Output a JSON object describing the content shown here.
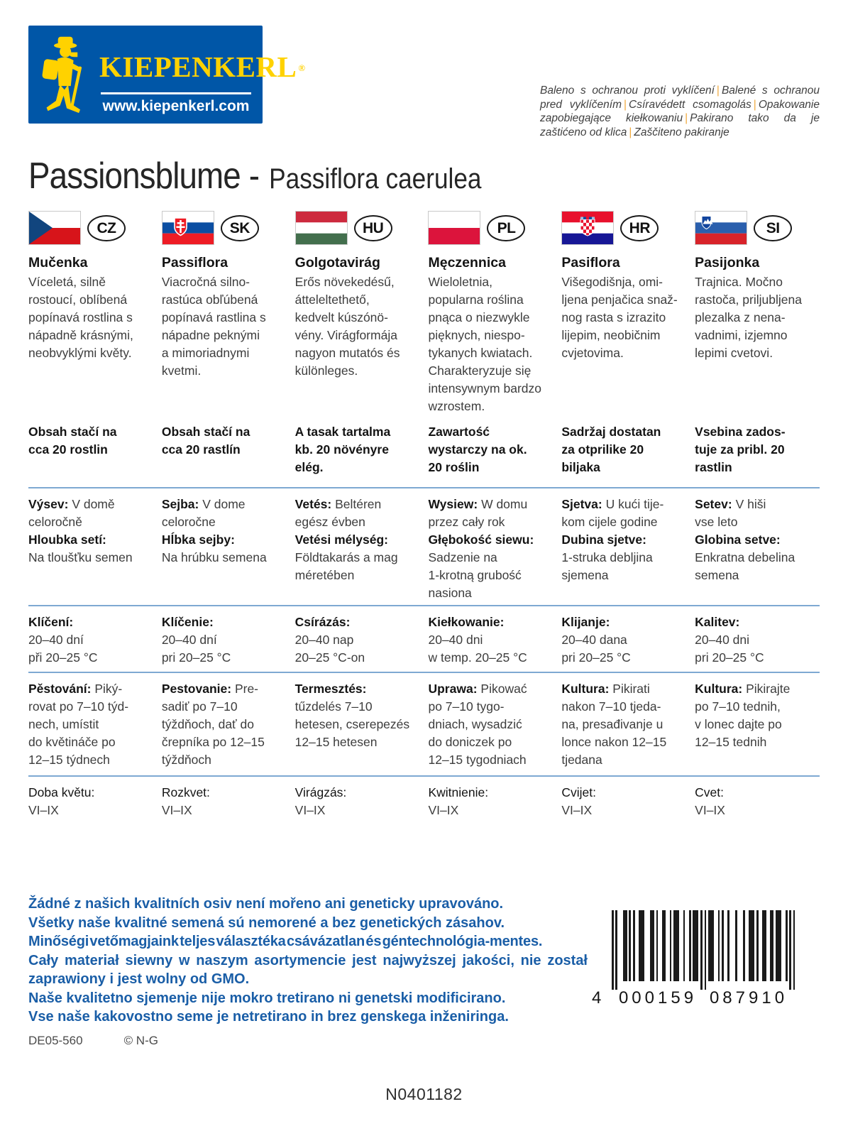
{
  "logo": {
    "brand": "KIEPENKERL",
    "reg": "®",
    "url": "www.kiepenkerl.com",
    "bg_color": "#0056a7",
    "accent_color": "#ffd200"
  },
  "header": {
    "note_separator": "|",
    "note_segments": [
      "Baleno s ochranou proti vyklíčení",
      "Balené s ochranou pred vyklíčením",
      "Csíravédett csomagolás",
      "Opakowanie zapobiegające kiełkowaniu",
      "Pakirano tako da je zaštićeno od klica",
      "Zaščiteno pakiranje"
    ],
    "title": "Passionsblume -",
    "subtitle": "Passiflora caerulea"
  },
  "columns": [
    {
      "code": "CZ",
      "name": "Mučenka",
      "description": "Víceletá, silně\nrostoucí, oblíbená\npopínavá rostlina s\nnápadně krásnými,\nneobvyklými květy.",
      "content": "Obsah stačí na\ncca 20 rostlin",
      "sow_label": "Výsev:",
      "sow_text": "V domě\nceloročně",
      "depth_label": "Hloubka setí:",
      "depth_text": "\nNa tloušťku semen",
      "germ_label": "Klíčení:",
      "germ_text": "\n20–40 dní\npři 20–25 °C",
      "culture_label": "Pěstování:",
      "culture_text": "Piký-\nrovat po 7–10 týd-\nnech, umístit\ndo květináče po\n12–15 týdnech",
      "bloom_label": "Doba květu:",
      "bloom_text": "VI–IX"
    },
    {
      "code": "SK",
      "name": "Passiflora",
      "description": "Viacročná silno-\nrastúca obľúbená\npopínavá rastlina s\nnápadne peknými\na mimoriadnymi\nkvetmi.",
      "content": "Obsah stačí na\ncca 20 rastlín",
      "sow_label": "Sejba:",
      "sow_text": "V dome\nceloročne",
      "depth_label": "Hĺbka sejby:",
      "depth_text": "\nNa hrúbku semena",
      "germ_label": "Klíčenie:",
      "germ_text": "\n20–40 dní\npri 20–25 °C",
      "culture_label": "Pestovanie:",
      "culture_text": "Pre-\nsadiť po 7–10\ntýždňoch, dať do\nčrepníka po 12–15\ntýždňoch",
      "bloom_label": "Rozkvet:",
      "bloom_text": "VI–IX"
    },
    {
      "code": "HU",
      "name": "Golgotavirág",
      "description": "Erős növekedésű,\nátteleltethető,\nkedvelt kúszónö-\nvény. Virágformája\nnagyon mutatós és\nkülönleges.",
      "content": "A tasak tartalma\nkb. 20 növényre\nelég.",
      "sow_label": "Vetés:",
      "sow_text": "Beltéren\negész évben",
      "depth_label": "Vetési mélység:",
      "depth_text": "\nFöldtakarás a mag\nméretében",
      "germ_label": "Csírázás:",
      "germ_text": "\n20–40 nap\n20–25 °C-on",
      "culture_label": "Termesztés:",
      "culture_text": "\ntűzdelés 7–10\nhetesen, cserepezés\n12–15 hetesen",
      "bloom_label": "Virágzás:",
      "bloom_text": "VI–IX"
    },
    {
      "code": "PL",
      "name": "Męczennica",
      "description": "Wieloletnia,\npopularna roślina\npnąca o niezwykle\npięknych, niespo-\ntykanych kwiatach.\nCharakteryzuje się\nintensywnym bardzo\nwzrostem.",
      "content": "Zawartość\nwystarczy na ok.\n20 roślin",
      "sow_label": "Wysiew:",
      "sow_text": "W domu\nprzez cały rok",
      "depth_label": "Głębokość siewu:",
      "depth_text": "\nSadzenie na\n1-krotną grubość\nnasiona",
      "germ_label": "Kiełkowanie:",
      "germ_text": "\n20–40 dni\nw temp. 20–25 °C",
      "culture_label": "Uprawa:",
      "culture_text": "Pikować\npo 7–10 tygo-\ndniach, wysadzić\ndo doniczek po\n12–15 tygodniach",
      "bloom_label": "Kwitnienie:",
      "bloom_text": "VI–IX"
    },
    {
      "code": "HR",
      "name": "Pasiflora",
      "description": "Višegodišnja, omi-\nljena penjačica snaž-\nnog rasta s izrazito\nlijepim, neobičnim\ncvjetovima.",
      "content": "Sadržaj dostatan\nza otprilike 20\nbiljaka",
      "sow_label": "Sjetva:",
      "sow_text": "U kući tije-\nkom cijele godine",
      "depth_label": "Dubina sjetve:",
      "depth_text": "\n1-struka debljina\nsjemena",
      "germ_label": "Klijanje:",
      "germ_text": "\n20–40 dana\npri 20–25 °C",
      "culture_label": "Kultura:",
      "culture_text": "Pikirati\nnakon 7–10 tjeda-\nna, presađivanje u\nlonce nakon 12–15\ntjedana",
      "bloom_label": "Cvijet:",
      "bloom_text": "VI–IX"
    },
    {
      "code": "SI",
      "name": "Pasijonka",
      "description": "Trajnica. Močno\nrastoča, priljubljena\nplezalka z nena-\nvadnimi, izjemno\nlepimi cvetovi.",
      "content": "Vsebina zados-\ntuje za pribl. 20\nrastlin",
      "sow_label": "Setev:",
      "sow_text": "V hiši\nvse leto",
      "depth_label": "Globina setve:",
      "depth_text": "\nEnkratna debelina\nsemena",
      "germ_label": "Kalitev:",
      "germ_text": "\n20–40 dni\npri 20–25 °C",
      "culture_label": "Kultura:",
      "culture_text": "Pikirajte\npo 7–10 tednih,\nv lonec dajte po\n12–15 tednih",
      "bloom_label": "Cvet:",
      "bloom_text": "VI–IX"
    }
  ],
  "footer": {
    "gmo_lines": [
      "Žádné z našich kvalitních osiv není mořeno ani geneticky upravováno.",
      "Všetky naše kvalitné semená sú nemorené a bez genetických zásahov.",
      "Minőségi vetőmagjaink teljes választéka csávázatlan és géntechnológia-mentes.",
      "Cały materiał siewny w naszym asortymencie jest najwyższej jakości, nie został zaprawiony i jest wolny od GMO.",
      "Naše kvalitetno sjemenje nije mokro tretirano ni genetski modificirano.",
      "Vse naše kakovostno seme je netretirano in brez genskega inženiringa."
    ],
    "gmo_color": "#1a5ea7",
    "code_left": "DE05-560",
    "copyright": "© N-G",
    "barcode": {
      "digits": "4000159087910",
      "display_first": "4",
      "display_left": "000159",
      "display_right": "087910"
    },
    "item_number": "N0401182"
  }
}
